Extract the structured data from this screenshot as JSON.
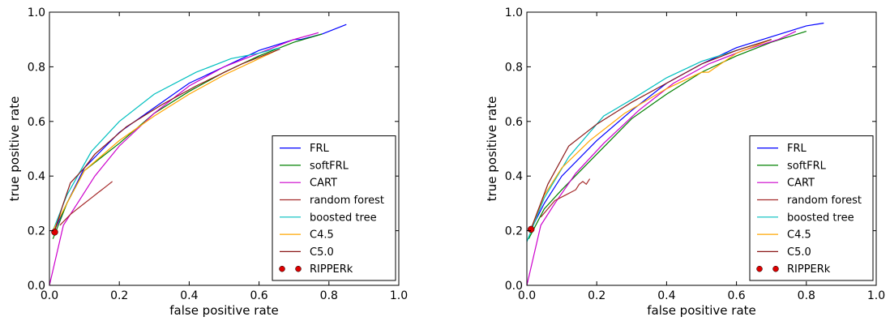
{
  "chart_data": [
    {
      "type": "line",
      "xlabel": "false positive rate",
      "ylabel": "true positive rate",
      "xlim": [
        0,
        1
      ],
      "ylim": [
        0,
        1
      ],
      "xticks": [
        "0.0",
        "0.2",
        "0.4",
        "0.6",
        "0.8",
        "1.0"
      ],
      "yticks": [
        "0.0",
        "0.2",
        "0.4",
        "0.6",
        "0.8",
        "1.0"
      ],
      "legend_position": "lower-right",
      "grid": false,
      "series": [
        {
          "name": "FRL",
          "color": "#0000ff",
          "style": "line",
          "x": [
            0.012,
            0.05,
            0.1,
            0.2,
            0.3,
            0.4,
            0.5,
            0.6,
            0.7,
            0.72,
            0.78,
            0.85
          ],
          "y": [
            0.195,
            0.3,
            0.43,
            0.56,
            0.65,
            0.74,
            0.8,
            0.86,
            0.9,
            0.9,
            0.92,
            0.955
          ]
        },
        {
          "name": "softFRL",
          "color": "#008000",
          "style": "line",
          "x": [
            0.01,
            0.05,
            0.1,
            0.2,
            0.3,
            0.4,
            0.5,
            0.6,
            0.7,
            0.78
          ],
          "y": [
            0.17,
            0.3,
            0.42,
            0.52,
            0.63,
            0.71,
            0.78,
            0.84,
            0.89,
            0.92
          ]
        },
        {
          "name": "CART",
          "color": "#cc00cc",
          "style": "line",
          "x": [
            0.0,
            0.04,
            0.08,
            0.13,
            0.2,
            0.3,
            0.4,
            0.5,
            0.6,
            0.7,
            0.77
          ],
          "y": [
            0.0,
            0.22,
            0.3,
            0.4,
            0.51,
            0.63,
            0.73,
            0.8,
            0.85,
            0.9,
            0.925
          ]
        },
        {
          "name": "random forest",
          "color": "#a52a2a",
          "style": "line",
          "x": [
            0.03,
            0.06,
            0.1,
            0.12,
            0.14,
            0.15,
            0.16,
            0.17,
            0.18
          ],
          "y": [
            0.22,
            0.26,
            0.3,
            0.32,
            0.34,
            0.35,
            0.36,
            0.37,
            0.38
          ]
        },
        {
          "name": "boosted tree",
          "color": "#00bfbf",
          "style": "line",
          "x": [
            0.01,
            0.05,
            0.12,
            0.2,
            0.3,
            0.42,
            0.52,
            0.6,
            0.66
          ],
          "y": [
            0.2,
            0.33,
            0.49,
            0.6,
            0.7,
            0.78,
            0.83,
            0.85,
            0.87
          ]
        },
        {
          "name": "C4.5",
          "color": "#ffa500",
          "style": "line",
          "x": [
            0.01,
            0.05,
            0.1,
            0.2,
            0.3,
            0.4,
            0.5,
            0.6,
            0.65
          ],
          "y": [
            0.2,
            0.3,
            0.42,
            0.53,
            0.62,
            0.7,
            0.77,
            0.83,
            0.86
          ]
        },
        {
          "name": "C5.0",
          "color": "#8b1a1a",
          "style": "line",
          "x": [
            0.015,
            0.04,
            0.06,
            0.1,
            0.13,
            0.22,
            0.32,
            0.42,
            0.55,
            0.66
          ],
          "y": [
            0.2,
            0.3,
            0.375,
            0.43,
            0.48,
            0.58,
            0.66,
            0.73,
            0.81,
            0.865
          ]
        },
        {
          "name": "RIPPERk",
          "color": "#dd0000",
          "style": "marker",
          "x": [
            0.015
          ],
          "y": [
            0.195
          ]
        }
      ]
    },
    {
      "type": "line",
      "xlabel": "false positive rate",
      "ylabel": "true positive rate",
      "xlim": [
        0,
        1
      ],
      "ylim": [
        0,
        1
      ],
      "xticks": [
        "0.0",
        "0.2",
        "0.4",
        "0.6",
        "0.8",
        "1.0"
      ],
      "yticks": [
        "0.0",
        "0.2",
        "0.4",
        "0.6",
        "0.8",
        "1.0"
      ],
      "legend_position": "lower-right",
      "grid": false,
      "series": [
        {
          "name": "FRL",
          "color": "#0000ff",
          "style": "line",
          "x": [
            0.01,
            0.05,
            0.1,
            0.2,
            0.3,
            0.4,
            0.5,
            0.6,
            0.7,
            0.8,
            0.85
          ],
          "y": [
            0.2,
            0.3,
            0.4,
            0.53,
            0.64,
            0.74,
            0.81,
            0.87,
            0.91,
            0.95,
            0.96
          ]
        },
        {
          "name": "softFRL",
          "color": "#008000",
          "style": "line",
          "x": [
            0.005,
            0.05,
            0.1,
            0.2,
            0.3,
            0.4,
            0.5,
            0.6,
            0.7,
            0.8
          ],
          "y": [
            0.17,
            0.28,
            0.35,
            0.48,
            0.61,
            0.7,
            0.78,
            0.84,
            0.89,
            0.93
          ]
        },
        {
          "name": "CART",
          "color": "#cc00cc",
          "style": "line",
          "x": [
            0.0,
            0.04,
            0.08,
            0.14,
            0.22,
            0.32,
            0.42,
            0.52,
            0.62,
            0.72,
            0.77
          ],
          "y": [
            0.0,
            0.22,
            0.3,
            0.41,
            0.52,
            0.64,
            0.74,
            0.81,
            0.86,
            0.9,
            0.93
          ]
        },
        {
          "name": "random forest",
          "color": "#a52a2a",
          "style": "line",
          "x": [
            0.04,
            0.08,
            0.11,
            0.14,
            0.15,
            0.16,
            0.17,
            0.18
          ],
          "y": [
            0.25,
            0.31,
            0.33,
            0.35,
            0.37,
            0.38,
            0.37,
            0.39
          ]
        },
        {
          "name": "boosted tree",
          "color": "#00bfbf",
          "style": "line",
          "x": [
            0.0,
            0.05,
            0.12,
            0.22,
            0.3,
            0.4,
            0.5,
            0.6,
            0.7
          ],
          "y": [
            0.16,
            0.32,
            0.47,
            0.62,
            0.68,
            0.76,
            0.82,
            0.86,
            0.9
          ]
        },
        {
          "name": "C4.5",
          "color": "#ffa500",
          "style": "line",
          "x": [
            0.01,
            0.05,
            0.1,
            0.18,
            0.28,
            0.4,
            0.5,
            0.52,
            0.6,
            0.7
          ],
          "y": [
            0.2,
            0.33,
            0.43,
            0.53,
            0.63,
            0.72,
            0.78,
            0.78,
            0.85,
            0.9
          ]
        },
        {
          "name": "C5.0",
          "color": "#8b1a1a",
          "style": "line",
          "x": [
            0.01,
            0.06,
            0.12,
            0.2,
            0.3,
            0.4,
            0.5,
            0.6,
            0.7
          ],
          "y": [
            0.2,
            0.37,
            0.51,
            0.59,
            0.67,
            0.74,
            0.81,
            0.86,
            0.9
          ]
        },
        {
          "name": "RIPPERk",
          "color": "#dd0000",
          "style": "marker",
          "x": [
            0.012
          ],
          "y": [
            0.205
          ]
        }
      ]
    }
  ]
}
